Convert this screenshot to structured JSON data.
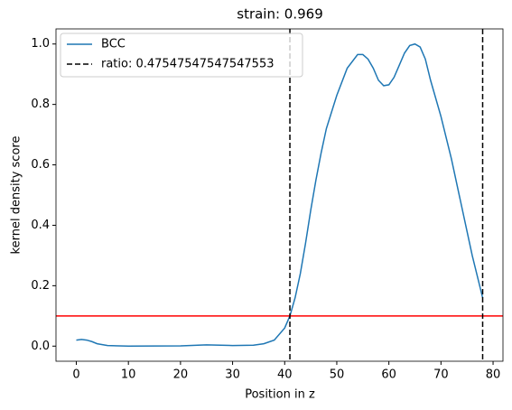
{
  "chart_data": {
    "type": "line",
    "title": "strain: 0.969",
    "xlabel": "Position in z",
    "ylabel": "kernel density score",
    "series": [
      {
        "name": "BCC",
        "color": "#1f77b4",
        "x": [
          0,
          1,
          2,
          3,
          4,
          6,
          10,
          20,
          25,
          30,
          34,
          36,
          38,
          40,
          41,
          42,
          43,
          44,
          45,
          46,
          47,
          48,
          50,
          52,
          54,
          55,
          56,
          57,
          58,
          59,
          60,
          61,
          62,
          63,
          64,
          65,
          66,
          67,
          68,
          70,
          72,
          74,
          76,
          78
        ],
        "values": [
          0.02,
          0.022,
          0.02,
          0.015,
          0.008,
          0.002,
          0,
          0.001,
          0.004,
          0.002,
          0.003,
          0.008,
          0.02,
          0.06,
          0.1,
          0.16,
          0.24,
          0.34,
          0.45,
          0.55,
          0.64,
          0.72,
          0.83,
          0.92,
          0.965,
          0.965,
          0.95,
          0.92,
          0.88,
          0.862,
          0.865,
          0.89,
          0.93,
          0.97,
          0.995,
          1.0,
          0.99,
          0.95,
          0.88,
          0.76,
          0.62,
          0.46,
          0.3,
          0.16
        ]
      }
    ],
    "vlines": {
      "name": "ratio: 0.47547547547547553",
      "color": "#000000",
      "x": [
        41,
        78
      ]
    },
    "hline": {
      "y": 0.1,
      "color": "#ff0000"
    },
    "xlim": [
      -3.9,
      81.9
    ],
    "ylim": [
      -0.05,
      1.05
    ],
    "xticks": [
      0,
      10,
      20,
      30,
      40,
      50,
      60,
      70,
      80
    ],
    "yticks": [
      {
        "value": 0,
        "label": "0.0"
      },
      {
        "value": 0.2,
        "label": "0.2"
      },
      {
        "value": 0.4,
        "label": "0.4"
      },
      {
        "value": 0.6,
        "label": "0.6"
      },
      {
        "value": 0.8,
        "label": "0.8"
      },
      {
        "value": 1,
        "label": "1.0"
      }
    ],
    "legend": "upper left"
  }
}
